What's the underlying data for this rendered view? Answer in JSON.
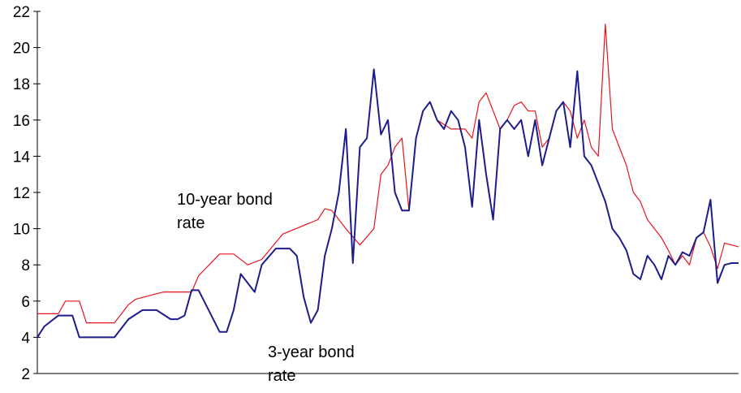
{
  "chart_data": {
    "type": "line",
    "title": "",
    "xlabel": "",
    "ylabel": "",
    "ylim": [
      2,
      22
    ],
    "yticks": [
      "2",
      "4",
      "6",
      "8",
      "10",
      "12",
      "14",
      "16",
      "18",
      "20",
      "22"
    ],
    "grid": false,
    "legend": "none",
    "annotations": {
      "ten_year": [
        "10-year bond",
        "rate"
      ],
      "three_year": [
        "3-year bond",
        "rate"
      ]
    },
    "series": [
      {
        "key": "ten_year",
        "color": "#e8141c",
        "x": [
          0,
          3,
          4,
          6,
          7,
          8,
          9,
          11,
          13,
          14,
          18,
          19,
          21,
          22,
          23,
          26,
          28,
          30,
          32,
          35,
          40,
          41,
          42,
          44,
          46,
          48,
          49,
          50,
          51,
          52,
          53,
          54,
          55,
          56,
          57,
          59,
          61,
          62,
          63,
          64,
          65,
          66,
          67,
          68,
          69,
          70,
          71,
          72,
          73,
          74,
          75,
          76,
          77,
          78,
          79,
          80,
          81,
          82,
          83,
          84,
          85,
          86,
          87,
          88,
          89,
          90,
          91,
          92,
          93,
          94,
          95,
          96,
          97,
          98,
          100
        ],
        "values": [
          5.3,
          5.3,
          6.0,
          6.0,
          4.8,
          4.8,
          4.8,
          4.8,
          5.8,
          6.1,
          6.5,
          6.5,
          6.5,
          6.5,
          7.4,
          8.6,
          8.6,
          8.0,
          8.3,
          9.7,
          10.5,
          11.1,
          11.0,
          10.0,
          9.1,
          10.0,
          13.0,
          13.5,
          14.5,
          15.0,
          11.0,
          15.0,
          16.5,
          17.0,
          16.0,
          15.5,
          15.5,
          15.0,
          17.0,
          17.5,
          16.5,
          15.5,
          16.0,
          16.8,
          17.0,
          16.5,
          16.5,
          14.5,
          15.0,
          16.5,
          17.0,
          16.5,
          15.0,
          16.0,
          14.5,
          14.0,
          21.3,
          15.5,
          14.5,
          13.5,
          12.0,
          11.5,
          10.5,
          10.0,
          9.5,
          8.8,
          8.0,
          8.5,
          8.0,
          9.5,
          9.8,
          9.0,
          7.8,
          9.2,
          9.0
        ]
      },
      {
        "key": "three_year",
        "color": "#1c1c8c",
        "x": [
          0,
          1,
          3,
          5,
          6,
          8,
          9,
          11,
          13,
          15,
          17,
          19,
          20,
          21,
          22,
          23,
          26,
          27,
          28,
          29,
          30,
          31,
          32,
          34,
          35,
          36,
          37,
          38,
          39,
          40,
          41,
          42,
          43,
          44,
          45,
          46,
          47,
          48,
          49,
          50,
          51,
          52,
          53,
          54,
          55,
          56,
          57,
          58,
          59,
          60,
          61,
          62,
          63,
          64,
          65,
          66,
          67,
          68,
          69,
          70,
          71,
          72,
          73,
          74,
          75,
          76,
          77,
          78,
          79,
          80,
          81,
          82,
          83,
          84,
          85,
          86,
          87,
          88,
          89,
          90,
          91,
          92,
          93,
          94,
          95,
          96,
          97,
          98,
          99,
          100
        ],
        "values": [
          4.0,
          4.6,
          5.2,
          5.2,
          4.0,
          4.0,
          4.0,
          4.0,
          5.0,
          5.5,
          5.5,
          5.0,
          5.0,
          5.2,
          6.6,
          6.6,
          4.3,
          4.3,
          5.5,
          7.5,
          7.0,
          6.5,
          8.0,
          8.9,
          8.9,
          8.9,
          8.5,
          6.2,
          4.8,
          5.5,
          8.5,
          10.0,
          12.0,
          15.5,
          8.1,
          14.5,
          15.0,
          18.8,
          15.2,
          16.0,
          12.0,
          11.0,
          11.0,
          15.0,
          16.5,
          17.0,
          16.0,
          15.5,
          16.5,
          16.0,
          14.5,
          11.2,
          16.0,
          13.0,
          10.5,
          15.5,
          16.0,
          15.5,
          16.0,
          14.0,
          16.0,
          13.5,
          15.0,
          16.5,
          17.0,
          14.5,
          18.7,
          14.0,
          13.5,
          12.5,
          11.5,
          10.0,
          9.5,
          8.8,
          7.5,
          7.2,
          8.5,
          8.0,
          7.2,
          8.5,
          8.0,
          8.7,
          8.5,
          9.5,
          9.8,
          11.6,
          7.0,
          8.0,
          8.1,
          8.1
        ]
      }
    ]
  }
}
